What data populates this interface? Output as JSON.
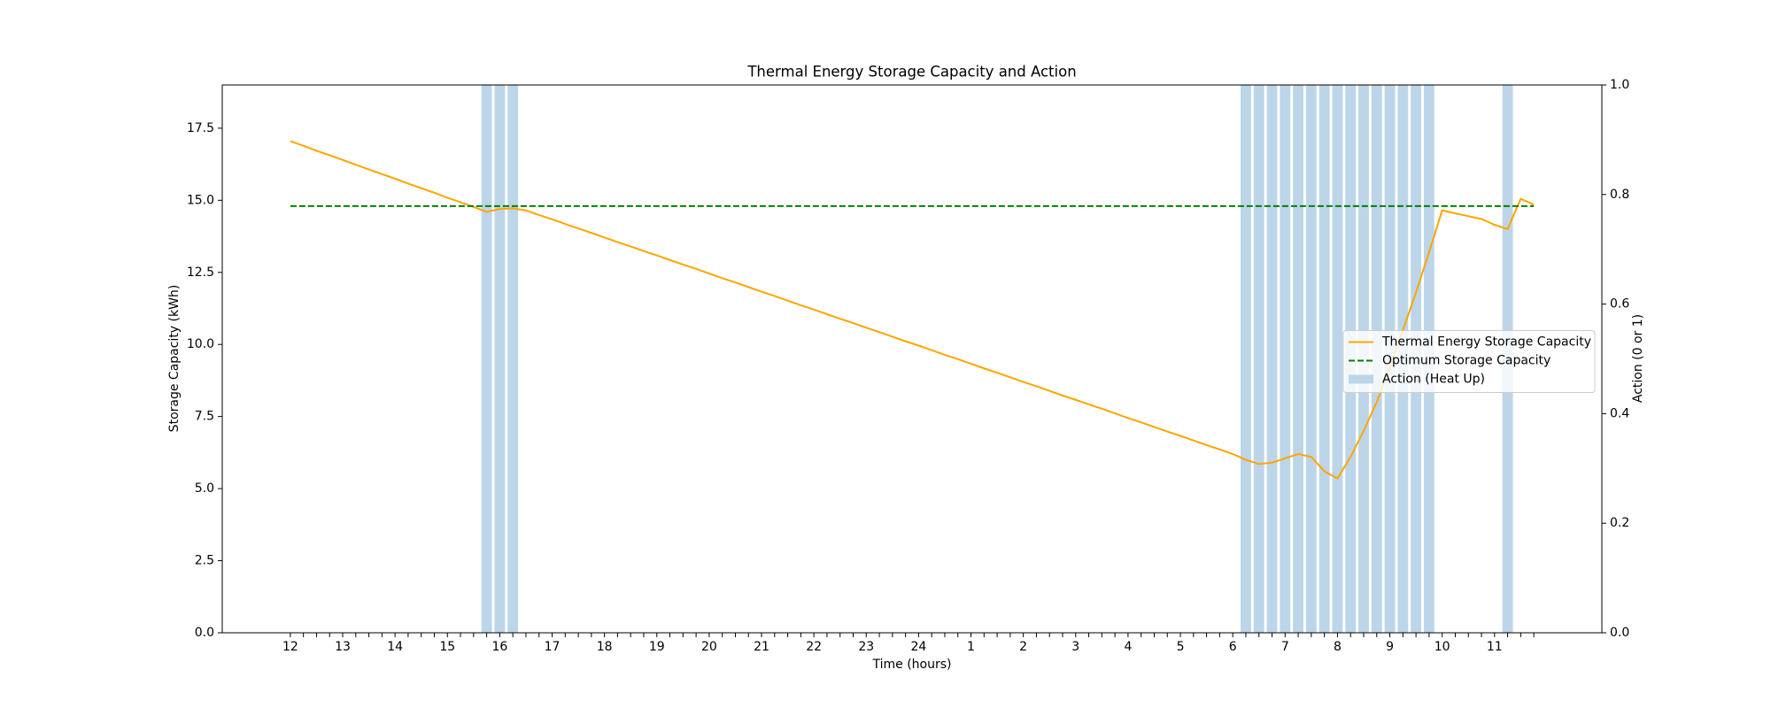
{
  "chart_data": {
    "type": "combo",
    "title": "Thermal Energy Storage Capacity and Action",
    "x_label": "Time (hours)",
    "y_label": "Storage Capacity (kWh)",
    "y2_label": "Action (0 or 1)",
    "categories": [
      "12",
      null,
      null,
      null,
      "13",
      null,
      null,
      null,
      "14",
      null,
      null,
      null,
      "15",
      null,
      null,
      null,
      "16",
      null,
      null,
      null,
      "17",
      null,
      null,
      null,
      "18",
      null,
      null,
      null,
      "19",
      null,
      null,
      null,
      "20",
      null,
      null,
      null,
      "21",
      null,
      null,
      null,
      "22",
      null,
      null,
      null,
      "23",
      null,
      null,
      null,
      "24",
      null,
      null,
      null,
      "1",
      null,
      null,
      null,
      "2",
      null,
      null,
      null,
      "3",
      null,
      null,
      null,
      "4",
      null,
      null,
      null,
      "5",
      null,
      null,
      null,
      "6",
      null,
      null,
      null,
      "7",
      null,
      null,
      null,
      "8",
      null,
      null,
      null,
      "9",
      null,
      null,
      null,
      "10",
      null,
      null,
      null,
      "11",
      null,
      null,
      null
    ],
    "series": [
      {
        "name": "Thermal Energy Storage Capacity",
        "type": "line",
        "color": "#ffa500",
        "values": [
          17.05,
          16.89,
          16.72,
          16.56,
          16.4,
          16.23,
          16.07,
          15.91,
          15.75,
          15.58,
          15.42,
          15.26,
          15.09,
          14.93,
          14.77,
          14.6,
          14.7,
          14.72,
          14.65,
          14.49,
          14.34,
          14.18,
          14.02,
          13.87,
          13.71,
          13.55,
          13.4,
          13.24,
          13.09,
          12.93,
          12.77,
          12.62,
          12.46,
          12.3,
          12.15,
          11.99,
          11.83,
          11.68,
          11.52,
          11.36,
          11.21,
          11.05,
          10.89,
          10.74,
          10.58,
          10.43,
          10.27,
          10.11,
          9.96,
          9.8,
          9.64,
          9.49,
          9.33,
          9.17,
          9.02,
          8.86,
          8.7,
          8.55,
          8.39,
          8.23,
          8.08,
          7.92,
          7.77,
          7.61,
          7.45,
          7.3,
          7.14,
          6.98,
          6.83,
          6.67,
          6.51,
          6.36,
          6.2,
          6.0,
          5.85,
          5.9,
          6.05,
          6.2,
          6.1,
          5.6,
          5.35,
          6.1,
          7.0,
          8.0,
          9.2,
          10.5,
          11.8,
          13.2,
          14.65,
          14.55,
          14.45,
          14.35,
          14.15,
          14.0,
          15.05,
          14.85
        ]
      },
      {
        "name": "Optimum Storage Capacity",
        "type": "line",
        "dashed": true,
        "color": "#008000",
        "values": [
          14.8,
          14.8,
          14.8,
          14.8,
          14.8,
          14.8,
          14.8,
          14.8,
          14.8,
          14.8,
          14.8,
          14.8,
          14.8,
          14.8,
          14.8,
          14.8,
          14.8,
          14.8,
          14.8,
          14.8,
          14.8,
          14.8,
          14.8,
          14.8,
          14.8,
          14.8,
          14.8,
          14.8,
          14.8,
          14.8,
          14.8,
          14.8,
          14.8,
          14.8,
          14.8,
          14.8,
          14.8,
          14.8,
          14.8,
          14.8,
          14.8,
          14.8,
          14.8,
          14.8,
          14.8,
          14.8,
          14.8,
          14.8,
          14.8,
          14.8,
          14.8,
          14.8,
          14.8,
          14.8,
          14.8,
          14.8,
          14.8,
          14.8,
          14.8,
          14.8,
          14.8,
          14.8,
          14.8,
          14.8,
          14.8,
          14.8,
          14.8,
          14.8,
          14.8,
          14.8,
          14.8,
          14.8,
          14.8,
          14.8,
          14.8,
          14.8,
          14.8,
          14.8,
          14.8,
          14.8,
          14.8,
          14.8,
          14.8,
          14.8,
          14.8,
          14.8,
          14.8,
          14.8,
          14.8,
          14.8,
          14.8,
          14.8,
          14.8,
          14.8,
          14.8,
          14.8
        ]
      },
      {
        "name": "Action (Heat Up)",
        "type": "bar",
        "axis": "y2",
        "color": "#bcd5e9",
        "values": [
          0,
          0,
          0,
          0,
          0,
          0,
          0,
          0,
          0,
          0,
          0,
          0,
          0,
          0,
          0,
          1,
          1,
          1,
          0,
          0,
          0,
          0,
          0,
          0,
          0,
          0,
          0,
          0,
          0,
          0,
          0,
          0,
          0,
          0,
          0,
          0,
          0,
          0,
          0,
          0,
          0,
          0,
          0,
          0,
          0,
          0,
          0,
          0,
          0,
          0,
          0,
          0,
          0,
          0,
          0,
          0,
          0,
          0,
          0,
          0,
          0,
          0,
          0,
          0,
          0,
          0,
          0,
          0,
          0,
          0,
          0,
          0,
          0,
          1,
          1,
          1,
          1,
          1,
          1,
          1,
          1,
          1,
          1,
          1,
          1,
          1,
          1,
          1,
          0,
          0,
          0,
          0,
          0,
          1,
          0,
          0
        ]
      }
    ],
    "ylim": [
      0,
      19
    ],
    "yticks": [
      {
        "value": 0,
        "label": "0.0"
      },
      2.5,
      {
        "value": 5,
        "label": "5.0"
      },
      7.5,
      {
        "value": 10,
        "label": "10.0"
      },
      12.5,
      {
        "value": 15,
        "label": "15.0"
      },
      17.5
    ],
    "y2lim": [
      0,
      1
    ],
    "y2ticks": [
      {
        "value": 0,
        "label": "0.0"
      },
      0.2,
      0.4,
      0.6,
      0.8,
      {
        "value": 1,
        "label": "1.0"
      }
    ],
    "legend": "center right",
    "grid": false
  }
}
